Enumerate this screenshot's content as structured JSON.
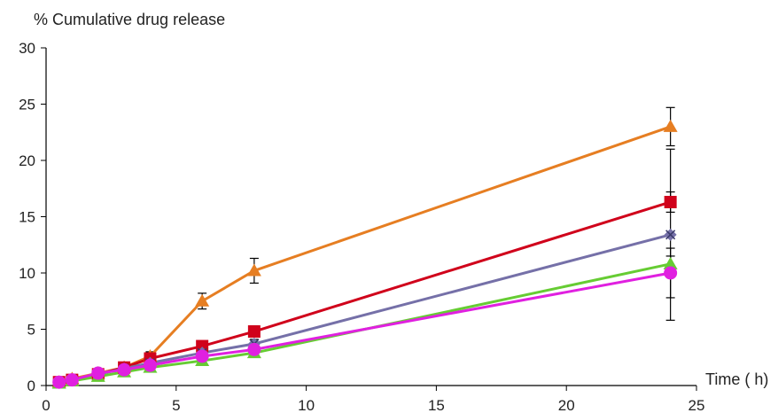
{
  "chart_data": {
    "type": "line",
    "ylabel": "% Cumulative drug release",
    "xlabel": "Time ( h)",
    "xlim": [
      0,
      25
    ],
    "ylim": [
      0,
      30
    ],
    "xticks": [
      0,
      5,
      10,
      15,
      20,
      25
    ],
    "yticks": [
      0,
      5,
      10,
      15,
      20,
      25,
      30
    ],
    "grid": false,
    "legend": "none",
    "x": [
      0.5,
      1,
      2,
      3,
      4,
      6,
      8,
      24
    ],
    "series": [
      {
        "color": "#E67E22",
        "marker": "triangle",
        "values": [
          0.3,
          0.6,
          1.1,
          1.6,
          2.6,
          7.5,
          10.2,
          23.0
        ],
        "errors": [
          0.1,
          0.1,
          0.2,
          0.2,
          0.4,
          0.7,
          1.1,
          1.7
        ]
      },
      {
        "color": "#D0021B",
        "marker": "square",
        "values": [
          0.3,
          0.5,
          1.0,
          1.6,
          2.4,
          3.5,
          4.8,
          16.3
        ],
        "errors": [
          0.1,
          0.1,
          0.2,
          0.2,
          0.3,
          0.3,
          0.5,
          0.9
        ]
      },
      {
        "color": "#7570A8",
        "marker": "x",
        "values": [
          0.3,
          0.5,
          1.0,
          1.5,
          2.0,
          2.9,
          3.7,
          13.4
        ],
        "errors": [
          0.1,
          0.1,
          0.2,
          0.2,
          0.2,
          0.3,
          0.4,
          7.6
        ]
      },
      {
        "color": "#66CC33",
        "marker": "triangle",
        "values": [
          0.2,
          0.4,
          0.8,
          1.2,
          1.6,
          2.2,
          2.9,
          10.8
        ],
        "errors": [
          0.1,
          0.1,
          0.1,
          0.2,
          0.2,
          0.3,
          0.3,
          0.7
        ]
      },
      {
        "color": "#E020E0",
        "marker": "circle",
        "values": [
          0.3,
          0.5,
          1.1,
          1.4,
          1.8,
          2.6,
          3.2,
          10.0
        ],
        "errors": [
          0.1,
          0.1,
          0.2,
          0.2,
          0.2,
          0.3,
          0.3,
          2.2
        ]
      }
    ]
  }
}
